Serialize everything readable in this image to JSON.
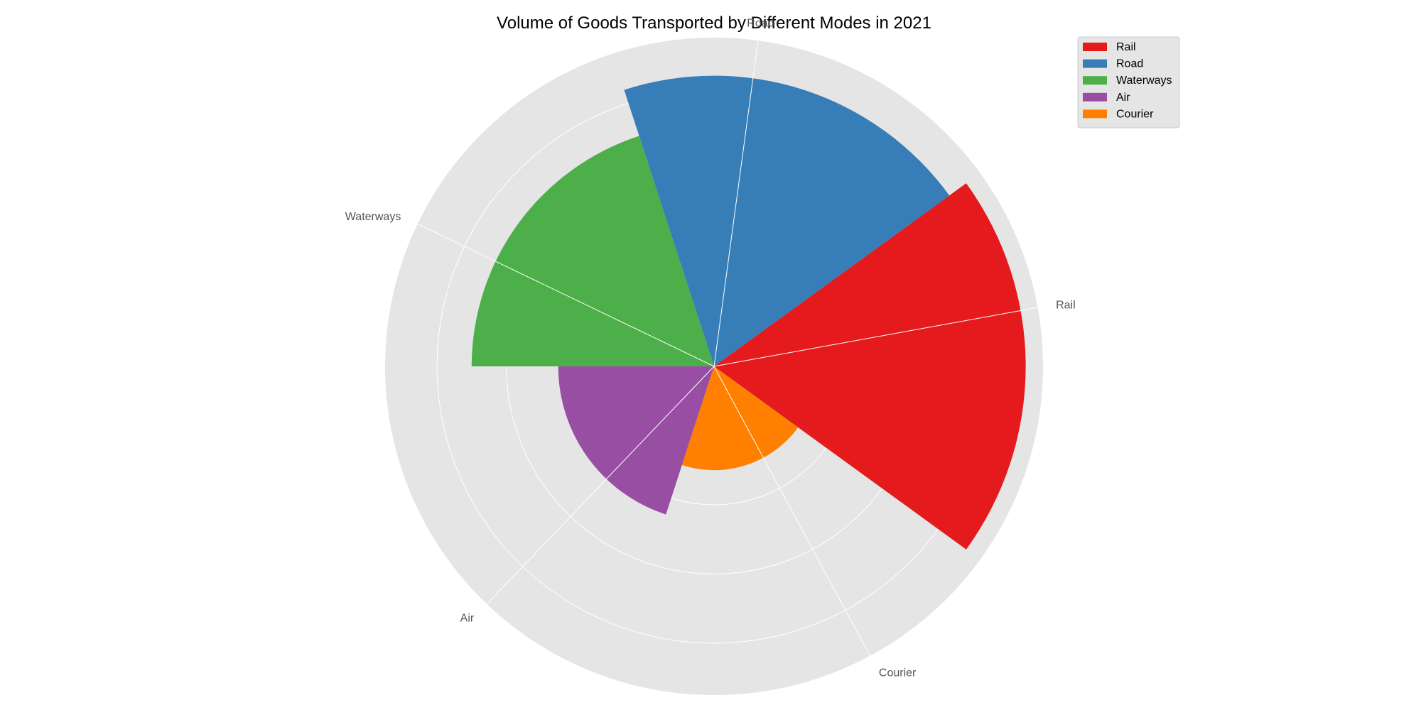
{
  "chart_data": {
    "type": "polar-bar",
    "title": "Volume of Goods Transported by Different Modes in 2021",
    "categories": [
      "Rail",
      "Road",
      "Waterways",
      "Air",
      "Courier"
    ],
    "values": [
      450,
      420,
      350,
      225,
      150
    ],
    "colors": [
      "#e41a1c",
      "#377eb8",
      "#4daf4a",
      "#984ea3",
      "#ff7f00"
    ],
    "rlim": [
      0,
      475
    ],
    "rings": [
      100,
      200,
      300,
      400
    ],
    "grid": true,
    "legend": {
      "position": "top-right",
      "entries": [
        "Rail",
        "Road",
        "Waterways",
        "Air",
        "Courier"
      ]
    },
    "background_color": "#e5e5e5",
    "grid_color": "#ffffff"
  }
}
